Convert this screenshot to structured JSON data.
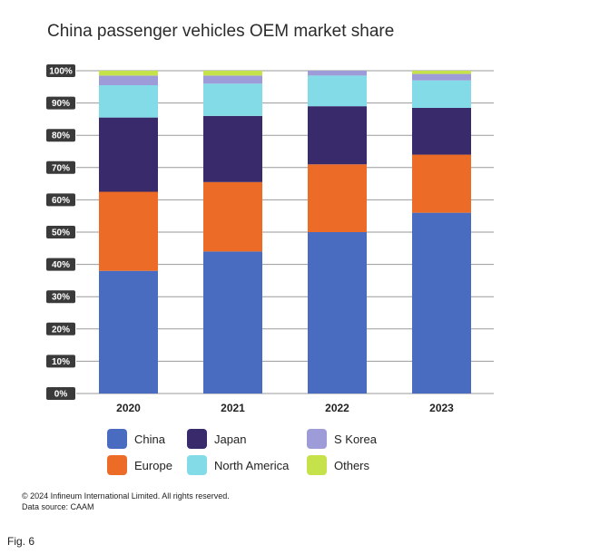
{
  "chart_data": {
    "type": "bar",
    "stacked": true,
    "title": "China passenger vehicles OEM market share",
    "categories": [
      "2020",
      "2021",
      "2022",
      "2023"
    ],
    "ylim": [
      0,
      100
    ],
    "yticks": [
      "0%",
      "10%",
      "20%",
      "30%",
      "40%",
      "50%",
      "60%",
      "70%",
      "80%",
      "90%",
      "100%"
    ],
    "grid": true,
    "legend_position": "bottom",
    "series": [
      {
        "name": "China",
        "color": "#4a6cc0",
        "values": [
          38,
          44,
          50,
          56
        ]
      },
      {
        "name": "Europe",
        "color": "#ec6b26",
        "values": [
          24.5,
          21.5,
          21,
          18
        ]
      },
      {
        "name": "Japan",
        "color": "#382a6b",
        "values": [
          23,
          20.5,
          18,
          14.5
        ]
      },
      {
        "name": "North America",
        "color": "#82dbe6",
        "values": [
          10,
          10,
          9.5,
          8.5
        ]
      },
      {
        "name": "S Korea",
        "color": "#9e9cd8",
        "values": [
          3,
          2.5,
          1.5,
          2
        ]
      },
      {
        "name": "Others",
        "color": "#c6e24a",
        "values": [
          1.5,
          1.5,
          0,
          1
        ]
      }
    ],
    "legend_order": [
      "China",
      "Japan",
      "S Korea",
      "Europe",
      "North America",
      "Others"
    ]
  },
  "footer": {
    "copyright": "© 2024 Infineum International Limited. All rights reserved.",
    "source": "Data source: CAAM"
  },
  "figure_label": "Fig. 6"
}
